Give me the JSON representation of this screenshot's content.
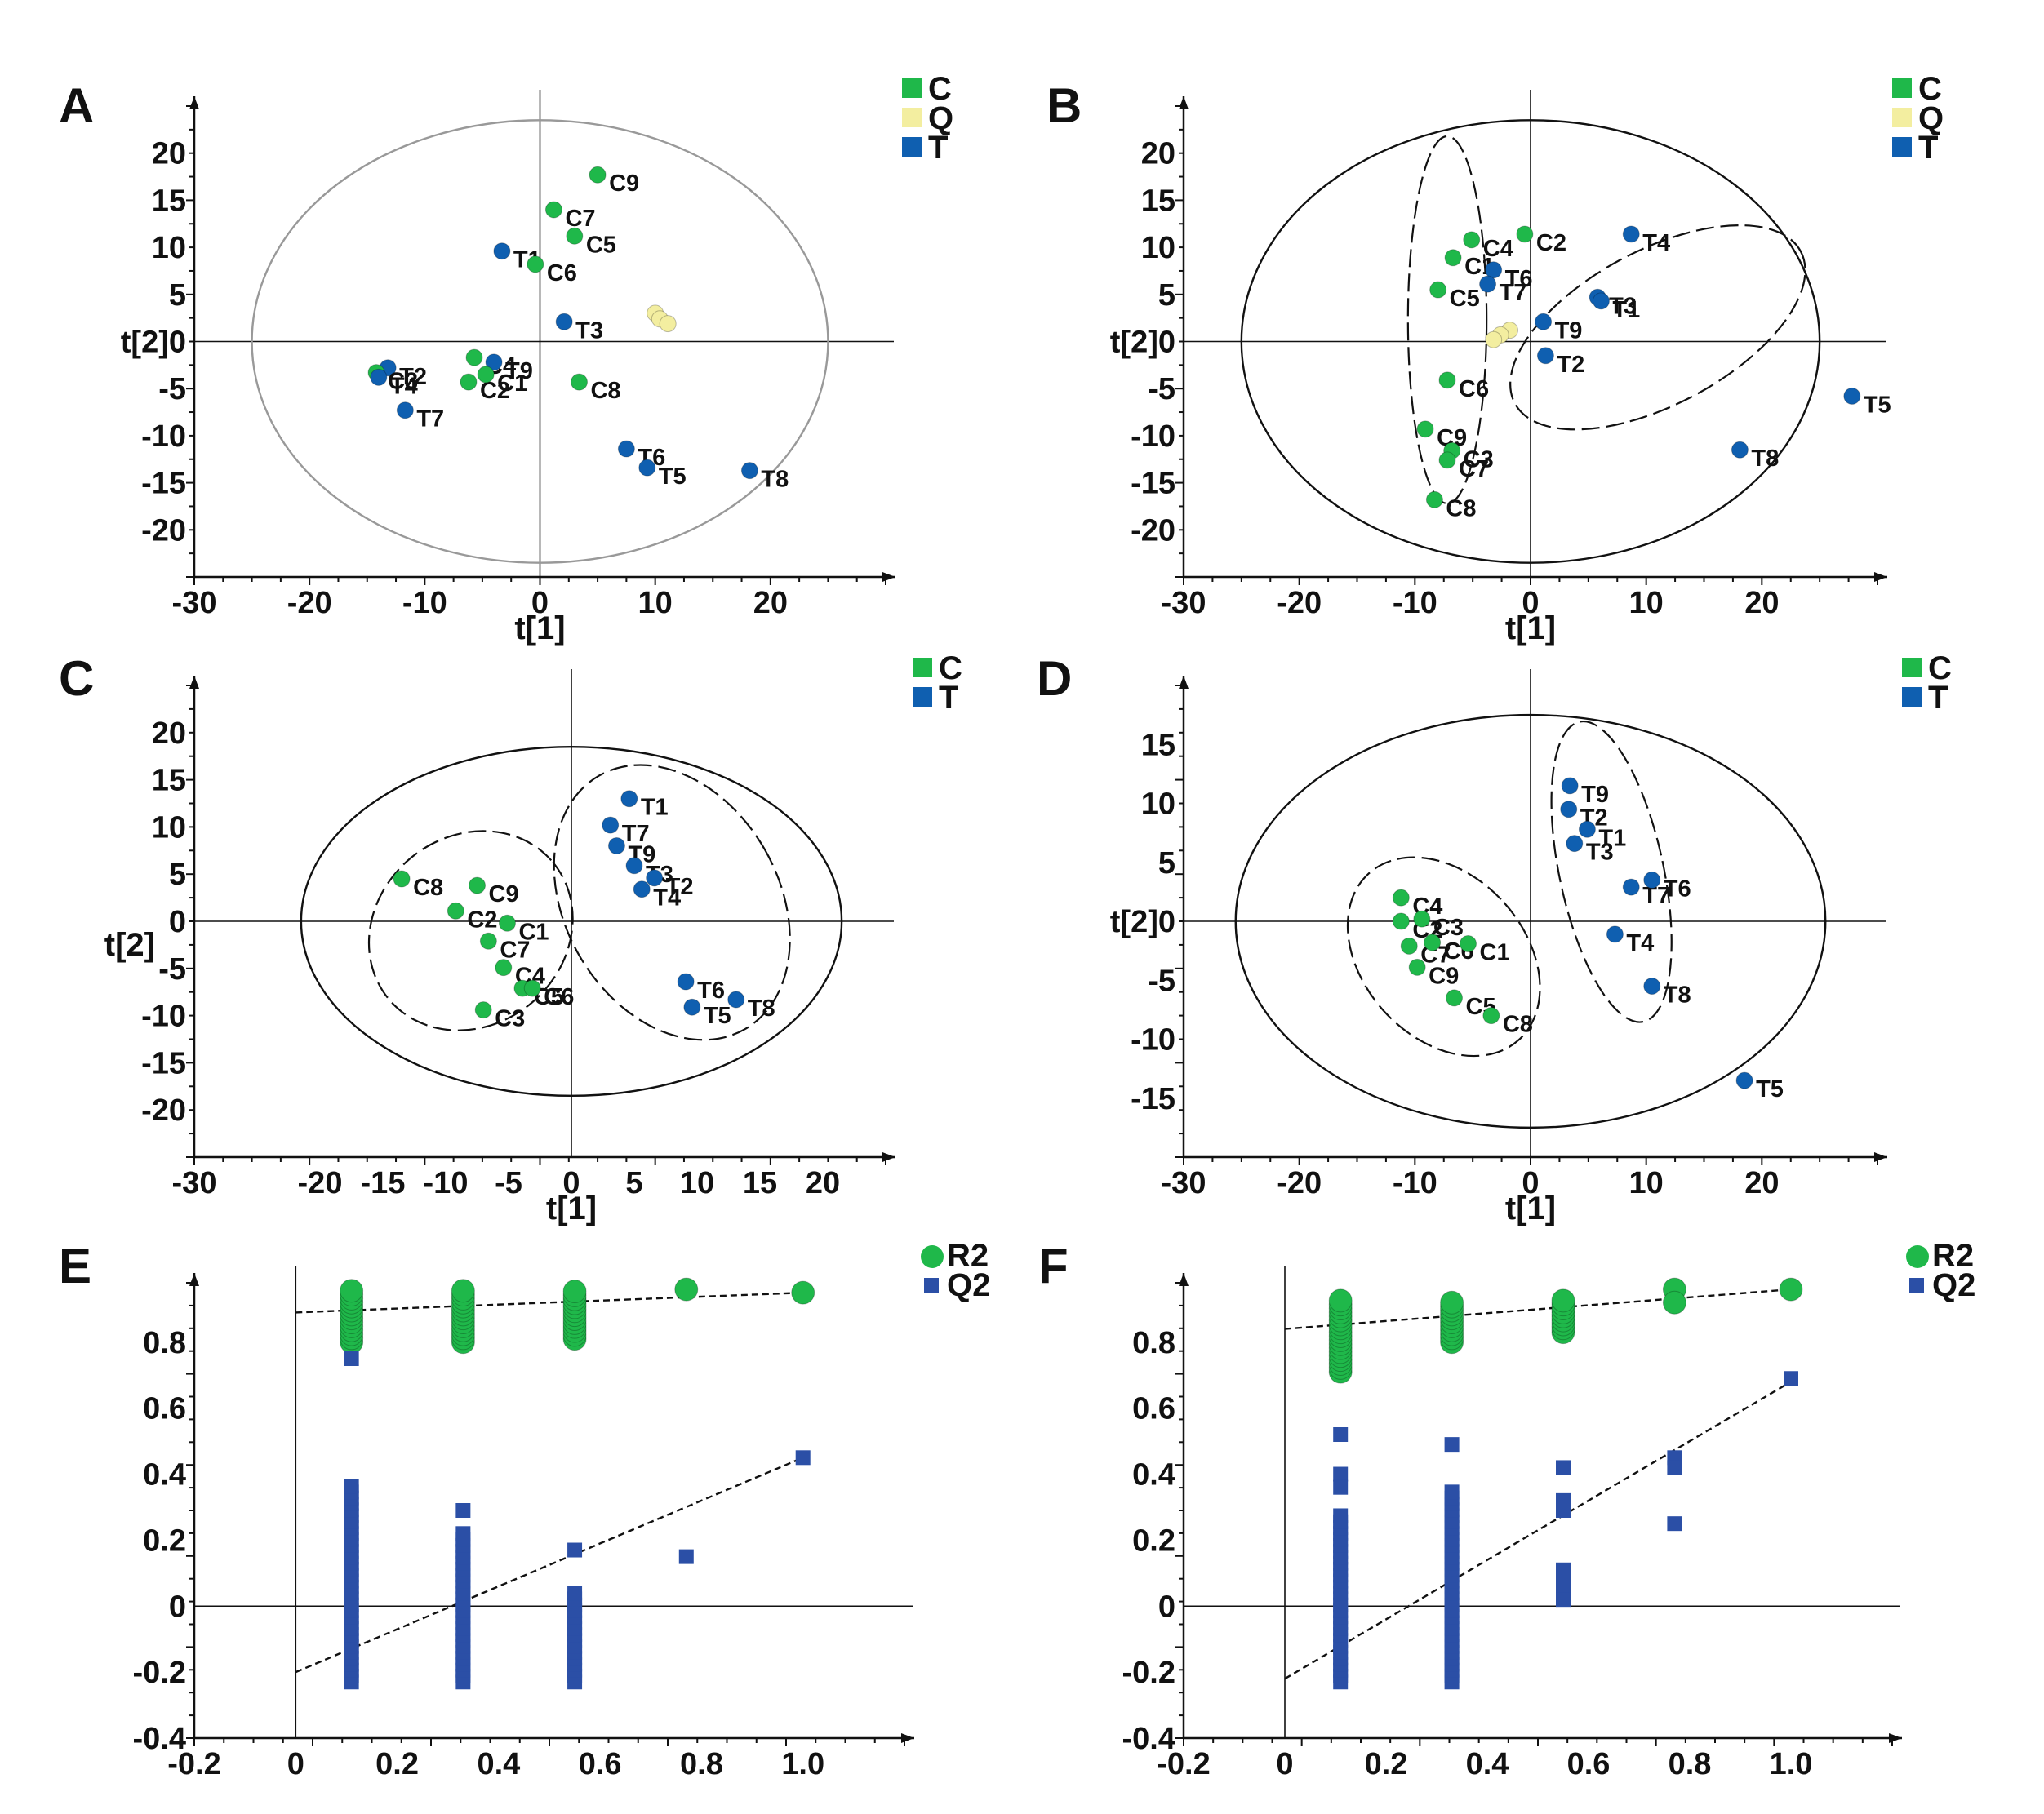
{
  "colors": {
    "green": "#1fb84a",
    "blue": "#0f5fb0",
    "navy": "#153c96",
    "q2blue": "#2b4fa6",
    "yellow": "#f3eea0",
    "axis": "#111111"
  },
  "chart_data": [
    {
      "panel": "A",
      "type": "scatter",
      "xlabel": "t[1]",
      "ylabel": "t[2]",
      "xlim": [
        -30,
        30
      ],
      "ylim": [
        -25,
        25
      ],
      "xticks": [
        -30,
        -20,
        -10,
        0,
        10,
        20
      ],
      "yticks": [
        20,
        15,
        10,
        5,
        0,
        -5,
        -10,
        -15,
        -20
      ],
      "origin_y_prefix": "t[2]",
      "legend": [
        {
          "label": "C",
          "group": "C"
        },
        {
          "label": "Q",
          "group": "Q"
        },
        {
          "label": "T",
          "group": "T"
        }
      ],
      "ellipses": [
        {
          "cx": 0,
          "cy": 0,
          "rx": 25,
          "ry": 23.5,
          "dashed": false,
          "angle": 0,
          "stroke": "#999999"
        }
      ],
      "points": [
        {
          "label": "C9",
          "group": "C",
          "x": 5,
          "y": 17.7
        },
        {
          "label": "C7",
          "group": "C",
          "x": 1.2,
          "y": 14
        },
        {
          "label": "C5",
          "group": "C",
          "x": 3,
          "y": 11.2
        },
        {
          "label": "T1",
          "group": "T",
          "x": -3.3,
          "y": 9.6
        },
        {
          "label": "C6",
          "group": "C",
          "x": -0.4,
          "y": 8.2
        },
        {
          "label": "T3",
          "group": "T",
          "x": 2.1,
          "y": 2.1
        },
        {
          "label": "",
          "group": "Q",
          "x": 10,
          "y": 3
        },
        {
          "label": "",
          "group": "Q",
          "x": 10.4,
          "y": 2.4
        },
        {
          "label": "",
          "group": "Q",
          "x": 11.1,
          "y": 1.9
        },
        {
          "label": "C4",
          "group": "C",
          "x": -5.7,
          "y": -1.7
        },
        {
          "label": "T9",
          "group": "T",
          "x": -4,
          "y": -2.2
        },
        {
          "label": "T2",
          "group": "T",
          "x": -13.2,
          "y": -2.8
        },
        {
          "label": "C3",
          "group": "C",
          "x": -14.2,
          "y": -3.3
        },
        {
          "label": "T4",
          "group": "T",
          "x": -14,
          "y": -3.8
        },
        {
          "label": "C2",
          "group": "C",
          "x": -6.2,
          "y": -4.3
        },
        {
          "label": "C1",
          "group": "C",
          "x": -4.7,
          "y": -3.5
        },
        {
          "label": "C8",
          "group": "C",
          "x": 3.4,
          "y": -4.3
        },
        {
          "label": "T7",
          "group": "T",
          "x": -11.7,
          "y": -7.3
        },
        {
          "label": "T6",
          "group": "T",
          "x": 7.5,
          "y": -11.4
        },
        {
          "label": "T5",
          "group": "T",
          "x": 9.3,
          "y": -13.4
        },
        {
          "label": "T8",
          "group": "T",
          "x": 18.2,
          "y": -13.7
        }
      ]
    },
    {
      "panel": "B",
      "type": "scatter",
      "xlabel": "t[1]",
      "ylabel": "t[2]",
      "xlim": [
        -30,
        30
      ],
      "ylim": [
        -25,
        25
      ],
      "xticks": [
        -30,
        -20,
        -10,
        0,
        10,
        20
      ],
      "yticks": [
        20,
        15,
        10,
        5,
        0,
        -5,
        -10,
        -15,
        -20
      ],
      "origin_y_prefix": "t[2]",
      "legend": [
        {
          "label": "C",
          "group": "C"
        },
        {
          "label": "Q",
          "group": "Q"
        },
        {
          "label": "T",
          "group": "T"
        }
      ],
      "ellipses": [
        {
          "cx": 0,
          "cy": 0,
          "rx": 25,
          "ry": 23.5,
          "dashed": false,
          "angle": 0,
          "stroke": "#111111"
        },
        {
          "cx": -7.2,
          "cy": 2.3,
          "rx": 3.4,
          "ry": 19.5,
          "dashed": true,
          "angle": 0,
          "stroke": "#111111"
        },
        {
          "cx": 11,
          "cy": 1.5,
          "rx": 14,
          "ry": 8.2,
          "dashed": true,
          "angle": -28,
          "stroke": "#111111"
        }
      ],
      "points": [
        {
          "label": "C2",
          "group": "C",
          "x": -0.5,
          "y": 11.4
        },
        {
          "label": "T4",
          "group": "T",
          "x": 8.7,
          "y": 11.4
        },
        {
          "label": "C4",
          "group": "C",
          "x": -5.1,
          "y": 10.8
        },
        {
          "label": "C1",
          "group": "C",
          "x": -6.7,
          "y": 8.9
        },
        {
          "label": "T6",
          "group": "T",
          "x": -3.2,
          "y": 7.6
        },
        {
          "label": "T7",
          "group": "T",
          "x": -3.7,
          "y": 6.1
        },
        {
          "label": "C5",
          "group": "C",
          "x": -8,
          "y": 5.5
        },
        {
          "label": "T3",
          "group": "T",
          "x": 5.8,
          "y": 4.7
        },
        {
          "label": "T1",
          "group": "T",
          "x": 6.1,
          "y": 4.3
        },
        {
          "label": "T9",
          "group": "T",
          "x": 1.1,
          "y": 2.1
        },
        {
          "label": "",
          "group": "Q",
          "x": -1.8,
          "y": 1.2
        },
        {
          "label": "",
          "group": "Q",
          "x": -2.6,
          "y": 0.7
        },
        {
          "label": "",
          "group": "Q",
          "x": -3.2,
          "y": 0.2
        },
        {
          "label": "T2",
          "group": "T",
          "x": 1.3,
          "y": -1.5
        },
        {
          "label": "C6",
          "group": "C",
          "x": -7.2,
          "y": -4.1
        },
        {
          "label": "T5",
          "group": "T",
          "x": 27.8,
          "y": -5.8
        },
        {
          "label": "C9",
          "group": "C",
          "x": -9.1,
          "y": -9.3
        },
        {
          "label": "C3",
          "group": "C",
          "x": -6.8,
          "y": -11.6
        },
        {
          "label": "C7",
          "group": "C",
          "x": -7.2,
          "y": -12.6
        },
        {
          "label": "T8",
          "group": "T",
          "x": 18.1,
          "y": -11.5
        },
        {
          "label": "C8",
          "group": "C",
          "x": -8.3,
          "y": -16.8
        }
      ]
    },
    {
      "panel": "C",
      "type": "scatter",
      "xlabel": "t[1]",
      "ylabel": "t[2]",
      "xlim": [
        -30,
        25
      ],
      "ylim": [
        -25,
        25
      ],
      "xticks": [
        -30,
        -20,
        -15,
        -10,
        -5,
        0,
        5,
        10,
        15,
        20
      ],
      "yticks": [
        20,
        15,
        10,
        5,
        0,
        -5,
        -10,
        -15,
        -20
      ],
      "origin_y_prefix": "",
      "legend": [
        {
          "label": "C",
          "group": "C"
        },
        {
          "label": "T",
          "group": "T"
        }
      ],
      "ellipses": [
        {
          "cx": 0,
          "cy": 0,
          "rx": 21.5,
          "ry": 18.5,
          "dashed": false,
          "angle": 0,
          "stroke": "#111111"
        },
        {
          "cx": -8,
          "cy": -1,
          "rx": 8.5,
          "ry": 10,
          "dashed": true,
          "angle": -40,
          "stroke": "#111111"
        },
        {
          "cx": 8,
          "cy": 2,
          "rx": 8.5,
          "ry": 15.5,
          "dashed": true,
          "angle": -30,
          "stroke": "#111111"
        }
      ],
      "points": [
        {
          "label": "T1",
          "group": "T",
          "x": 4.6,
          "y": 13
        },
        {
          "label": "T7",
          "group": "T",
          "x": 3.1,
          "y": 10.2
        },
        {
          "label": "T9",
          "group": "T",
          "x": 3.6,
          "y": 8
        },
        {
          "label": "T3",
          "group": "T",
          "x": 5,
          "y": 5.9
        },
        {
          "label": "T2",
          "group": "T",
          "x": 6.6,
          "y": 4.6
        },
        {
          "label": "T4",
          "group": "T",
          "x": 5.6,
          "y": 3.4
        },
        {
          "label": "C8",
          "group": "C",
          "x": -13.5,
          "y": 4.5
        },
        {
          "label": "C9",
          "group": "C",
          "x": -7.5,
          "y": 3.8
        },
        {
          "label": "C2",
          "group": "C",
          "x": -9.2,
          "y": 1.1
        },
        {
          "label": "C1",
          "group": "C",
          "x": -5.1,
          "y": -0.2
        },
        {
          "label": "C7",
          "group": "C",
          "x": -6.6,
          "y": -2.1
        },
        {
          "label": "C4",
          "group": "C",
          "x": -5.4,
          "y": -4.9
        },
        {
          "label": "C5",
          "group": "C",
          "x": -3.9,
          "y": -7.1
        },
        {
          "label": "C6",
          "group": "C",
          "x": -3.1,
          "y": -7.1
        },
        {
          "label": "C3",
          "group": "C",
          "x": -7,
          "y": -9.4
        },
        {
          "label": "T6",
          "group": "T",
          "x": 9.1,
          "y": -6.4
        },
        {
          "label": "T8",
          "group": "T",
          "x": 13.1,
          "y": -8.3
        },
        {
          "label": "T5",
          "group": "T",
          "x": 9.6,
          "y": -9.1
        }
      ]
    },
    {
      "panel": "D",
      "type": "scatter",
      "xlabel": "t[1]",
      "ylabel": "t[2]",
      "xlim": [
        -30,
        30
      ],
      "ylim": [
        -20,
        20
      ],
      "xticks": [
        -30,
        -20,
        -10,
        0,
        10,
        20
      ],
      "yticks": [
        15,
        10,
        5,
        0,
        -5,
        -10,
        -15
      ],
      "origin_y_prefix": "t[2]",
      "legend": [
        {
          "label": "C",
          "group": "C"
        },
        {
          "label": "T",
          "group": "T"
        }
      ],
      "ellipses": [
        {
          "cx": 0,
          "cy": 0,
          "rx": 25.5,
          "ry": 17.5,
          "dashed": false,
          "angle": 0,
          "stroke": "#111111"
        },
        {
          "cx": -7.5,
          "cy": -3,
          "rx": 7,
          "ry": 9.5,
          "dashed": true,
          "angle": -42,
          "stroke": "#111111"
        },
        {
          "cx": 7,
          "cy": 4.2,
          "rx": 4.5,
          "ry": 13,
          "dashed": true,
          "angle": -12,
          "stroke": "#111111"
        }
      ],
      "points": [
        {
          "label": "T9",
          "group": "T",
          "x": 3.4,
          "y": 11.5
        },
        {
          "label": "T2",
          "group": "T",
          "x": 3.3,
          "y": 9.5
        },
        {
          "label": "T1",
          "group": "T",
          "x": 4.9,
          "y": 7.8
        },
        {
          "label": "T3",
          "group": "T",
          "x": 3.8,
          "y": 6.6
        },
        {
          "label": "T7",
          "group": "T",
          "x": 8.7,
          "y": 2.9
        },
        {
          "label": "T6",
          "group": "T",
          "x": 10.5,
          "y": 3.5
        },
        {
          "label": "C4",
          "group": "C",
          "x": -11.2,
          "y": 2
        },
        {
          "label": "C2",
          "group": "C",
          "x": -11.2,
          "y": 0
        },
        {
          "label": "C3",
          "group": "C",
          "x": -9.4,
          "y": 0.2
        },
        {
          "label": "T4",
          "group": "T",
          "x": 7.3,
          "y": -1.1
        },
        {
          "label": "C7",
          "group": "C",
          "x": -10.5,
          "y": -2.1
        },
        {
          "label": "C6",
          "group": "C",
          "x": -8.5,
          "y": -1.8
        },
        {
          "label": "C1",
          "group": "C",
          "x": -5.4,
          "y": -1.9
        },
        {
          "label": "C9",
          "group": "C",
          "x": -9.8,
          "y": -3.9
        },
        {
          "label": "T8",
          "group": "T",
          "x": 10.5,
          "y": -5.5
        },
        {
          "label": "C5",
          "group": "C",
          "x": -6.6,
          "y": -6.5
        },
        {
          "label": "C8",
          "group": "C",
          "x": -3.4,
          "y": -8
        },
        {
          "label": "T5",
          "group": "T",
          "x": 18.5,
          "y": -13.5
        }
      ]
    },
    {
      "panel": "E",
      "type": "scatter",
      "xlabel": "",
      "ylabel": "",
      "xlim": [
        -0.2,
        1.2
      ],
      "ylim": [
        -0.4,
        0.98
      ],
      "xticks": [
        -0.2,
        0,
        0.2,
        0.4,
        0.6,
        0.8,
        1.0
      ],
      "xticklabels": [
        "-0.2",
        "0",
        "0.2",
        "0.4",
        "0.6",
        "0.8",
        "1.0"
      ],
      "yticks": [
        0.8,
        0.6,
        0.4,
        0.2,
        0,
        -0.2,
        -0.4
      ],
      "yticklabels": [
        "0.8",
        "0.6",
        "0.4",
        "0.2",
        "0",
        "-0.2",
        "-0.4"
      ],
      "legend": [
        {
          "label": "R2",
          "group": "R2"
        },
        {
          "label": "Q2",
          "group": "Q2"
        }
      ],
      "regression": [
        {
          "group": "R2",
          "x": [
            0,
            1.0
          ],
          "y": [
            0.89,
            0.95
          ]
        },
        {
          "group": "Q2",
          "x": [
            0,
            1.0
          ],
          "y": [
            -0.2,
            0.45
          ]
        }
      ],
      "series": [
        {
          "name": "R2",
          "group": "R2",
          "stacks": [
            {
              "x": 0.11,
              "ymin": 0.8,
              "ymax": 0.96
            },
            {
              "x": 0.33,
              "ymin": 0.8,
              "ymax": 0.96
            },
            {
              "x": 0.55,
              "ymin": 0.81,
              "ymax": 0.96
            }
          ],
          "points": [
            [
              0.77,
              0.96
            ],
            [
              1.0,
              0.95
            ]
          ]
        },
        {
          "name": "Q2",
          "group": "Q2",
          "stacks": [
            {
              "x": 0.11,
              "ymin": -0.23,
              "ymax": 0.37
            },
            {
              "x": 0.33,
              "ymin": -0.23,
              "ymax": 0.22
            },
            {
              "x": 0.55,
              "ymin": -0.23,
              "ymax": 0.05
            }
          ],
          "points": [
            [
              0.11,
              0.75
            ],
            [
              0.33,
              0.29
            ],
            [
              0.55,
              0.17
            ],
            [
              0.77,
              0.15
            ],
            [
              1.0,
              0.45
            ]
          ]
        }
      ]
    },
    {
      "panel": "F",
      "type": "scatter",
      "xlabel": "",
      "ylabel": "",
      "xlim": [
        -0.2,
        1.2
      ],
      "ylim": [
        -0.4,
        0.98
      ],
      "xticks": [
        -0.2,
        0,
        0.2,
        0.4,
        0.6,
        0.8,
        1.0
      ],
      "xticklabels": [
        "-0.2",
        "0",
        "0.2",
        "0.4",
        "0.6",
        "0.8",
        "1.0"
      ],
      "yticks": [
        0.8,
        0.6,
        0.4,
        0.2,
        0,
        -0.2,
        -0.4
      ],
      "yticklabels": [
        "0.8",
        "0.6",
        "0.4",
        "0.2",
        "0",
        "-0.2",
        "-0.4"
      ],
      "legend": [
        {
          "label": "R2",
          "group": "R2"
        },
        {
          "label": "Q2",
          "group": "Q2"
        }
      ],
      "regression": [
        {
          "group": "R2",
          "x": [
            0,
            1.0
          ],
          "y": [
            0.84,
            0.96
          ]
        },
        {
          "group": "Q2",
          "x": [
            0,
            1.0
          ],
          "y": [
            -0.22,
            0.68
          ]
        }
      ],
      "series": [
        {
          "name": "R2",
          "group": "R2",
          "stacks": [
            {
              "x": 0.11,
              "ymin": 0.71,
              "ymax": 0.93
            },
            {
              "x": 0.33,
              "ymin": 0.8,
              "ymax": 0.93
            },
            {
              "x": 0.55,
              "ymin": 0.83,
              "ymax": 0.93
            }
          ],
          "points": [
            [
              0.77,
              0.96
            ],
            [
              0.77,
              0.92
            ],
            [
              1.0,
              0.96
            ]
          ]
        },
        {
          "name": "Q2",
          "group": "Q2",
          "stacks": [
            {
              "x": 0.11,
              "ymin": -0.23,
              "ymax": 0.28
            },
            {
              "x": 0.33,
              "ymin": -0.23,
              "ymax": 0.35
            }
          ],
          "points": [
            [
              0.11,
              0.52
            ],
            [
              0.11,
              0.4
            ],
            [
              0.11,
              0.36
            ],
            [
              0.33,
              0.49
            ],
            [
              0.55,
              0.42
            ],
            [
              0.55,
              0.32
            ],
            [
              0.55,
              0.29
            ],
            [
              0.55,
              0.11
            ],
            [
              0.55,
              0.08
            ],
            [
              0.55,
              0.04
            ],
            [
              0.55,
              0.02
            ],
            [
              0.77,
              0.45
            ],
            [
              0.77,
              0.42
            ],
            [
              0.77,
              0.25
            ],
            [
              1.0,
              0.69
            ]
          ]
        }
      ]
    }
  ]
}
